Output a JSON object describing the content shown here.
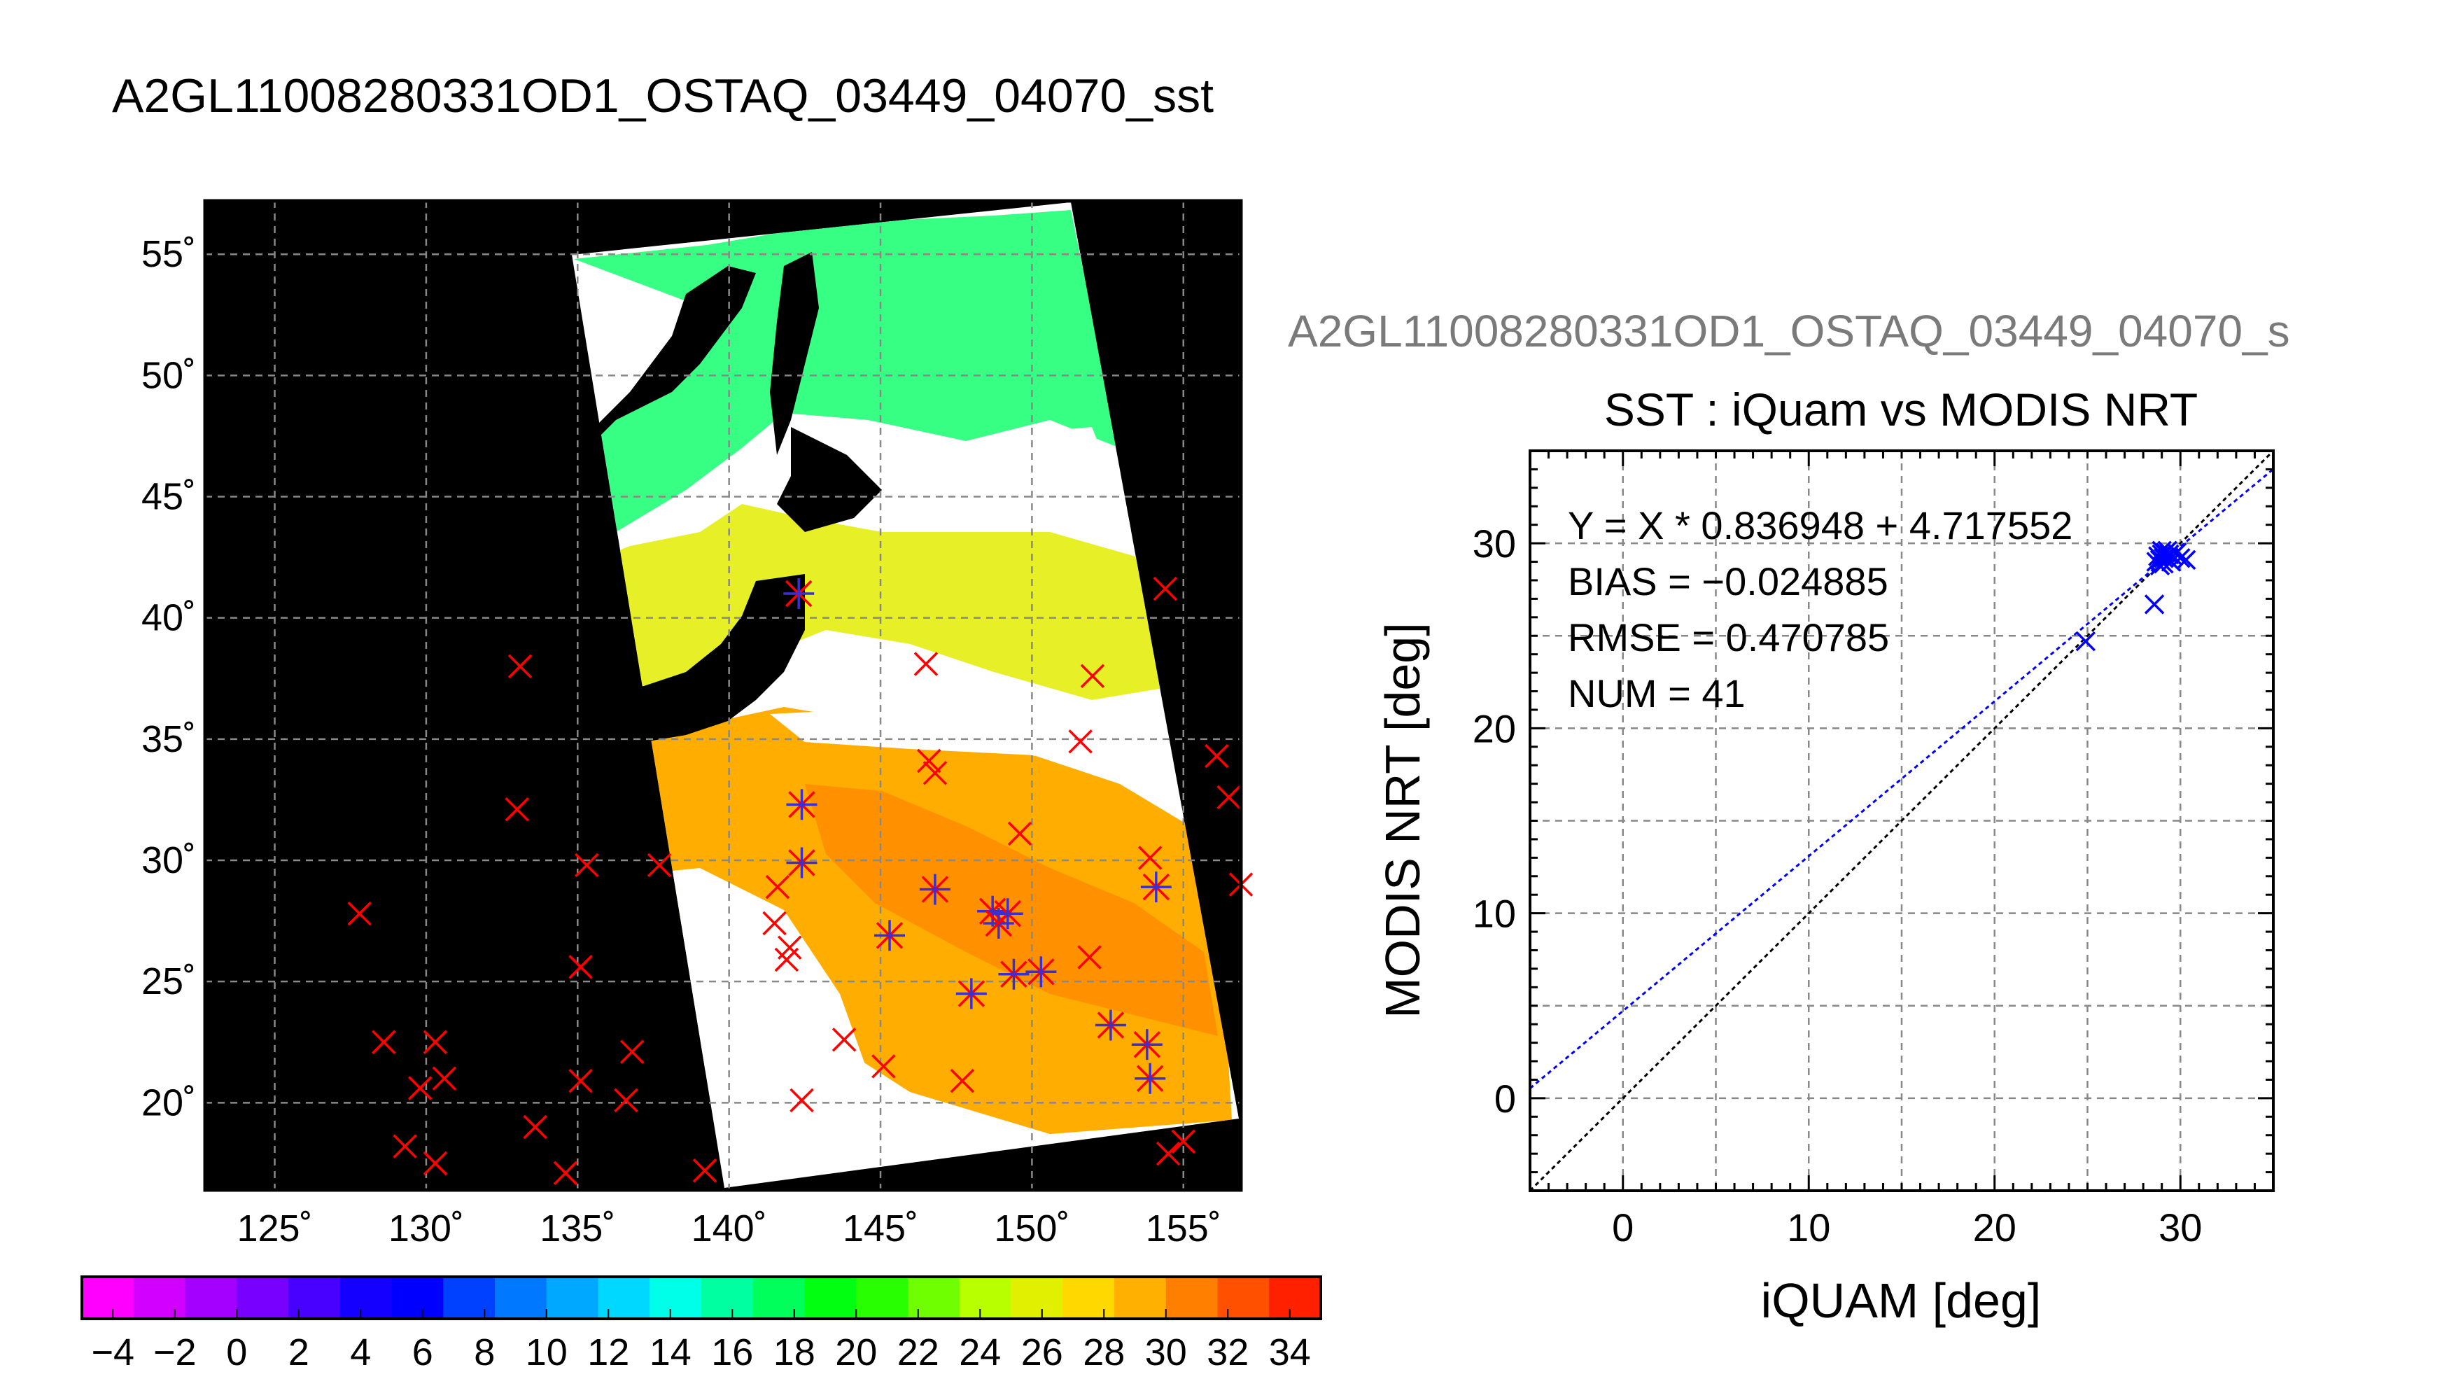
{
  "page_title": "A2GL11008280331OD1_OSTAQ_03449_04070_sst",
  "chart_data": [
    {
      "type": "map",
      "title": "A2GL11008280331OD1_OSTAQ_03449_04070_sst",
      "x_ticks": [
        "125˚",
        "130˚",
        "135˚",
        "140˚",
        "145˚",
        "150˚",
        "155˚"
      ],
      "y_ticks": [
        "20˚",
        "25˚",
        "30˚",
        "35˚",
        "40˚",
        "45˚",
        "50˚",
        "55˚"
      ],
      "xlim": [
        122.7,
        156.9
      ],
      "ylim": [
        16.4,
        57.2
      ],
      "x_tick_values": [
        125,
        130,
        135,
        140,
        145,
        150,
        155
      ],
      "y_tick_values": [
        20,
        25,
        30,
        35,
        40,
        45,
        50,
        55
      ],
      "grid": true,
      "colorbar": {
        "ticks": [
          "-4",
          "-2",
          "0",
          "2",
          "4",
          "6",
          "8",
          "10",
          "12",
          "14",
          "16",
          "18",
          "20",
          "22",
          "24",
          "26",
          "28",
          "30",
          "32",
          "34"
        ],
        "range": [
          -5,
          35
        ],
        "colors": [
          "#ff00ff",
          "#d200ff",
          "#a400ff",
          "#7800ff",
          "#4800ff",
          "#1400ff",
          "#0000ff",
          "#0040ff",
          "#0078ff",
          "#00a8ff",
          "#00d8ff",
          "#00ffe8",
          "#00ffa0",
          "#00ff5a",
          "#00ff10",
          "#28ff00",
          "#70ff00",
          "#b8ff00",
          "#e0f000",
          "#ffd800",
          "#ffb000",
          "#ff8000",
          "#ff5000",
          "#ff2000"
        ]
      },
      "marker_colors": {
        "red": "#ff0000",
        "blue": "#3c2fd0"
      },
      "red_markers": [
        [
          127.8,
          27.8
        ],
        [
          129.3,
          18.2
        ],
        [
          128.6,
          22.5
        ],
        [
          130.3,
          17.5
        ],
        [
          130.6,
          21.0
        ],
        [
          130.3,
          22.5
        ],
        [
          129.8,
          20.6
        ],
        [
          133.1,
          38.0
        ],
        [
          133.0,
          32.1
        ],
        [
          133.6,
          19.0
        ],
        [
          134.6,
          17.1
        ],
        [
          135.1,
          20.9
        ],
        [
          135.1,
          25.6
        ],
        [
          135.3,
          29.8
        ],
        [
          136.6,
          20.1
        ],
        [
          136.8,
          22.1
        ],
        [
          137.7,
          29.8
        ],
        [
          139.2,
          17.2
        ],
        [
          141.5,
          27.4
        ],
        [
          141.6,
          28.9
        ],
        [
          141.9,
          25.9
        ],
        [
          142.0,
          26.4
        ],
        [
          142.4,
          20.1
        ],
        [
          143.8,
          22.6
        ],
        [
          145.1,
          21.5
        ],
        [
          146.5,
          38.1
        ],
        [
          146.6,
          34.1
        ],
        [
          146.8,
          33.6
        ],
        [
          147.7,
          20.9
        ],
        [
          149.6,
          31.1
        ],
        [
          151.6,
          34.9
        ],
        [
          151.9,
          26.0
        ],
        [
          152.0,
          37.6
        ],
        [
          153.9,
          30.1
        ],
        [
          154.4,
          41.2
        ],
        [
          154.5,
          17.9
        ],
        [
          155.0,
          18.4
        ],
        [
          156.1,
          34.3
        ],
        [
          156.5,
          32.6
        ],
        [
          156.9,
          29.0
        ]
      ],
      "star_markers": [
        [
          142.3,
          41.0
        ],
        [
          142.4,
          32.3
        ],
        [
          142.4,
          29.9
        ],
        [
          145.3,
          26.9
        ],
        [
          146.8,
          28.8
        ],
        [
          148.0,
          24.5
        ],
        [
          148.7,
          27.9
        ],
        [
          148.9,
          27.4
        ],
        [
          149.2,
          27.8
        ],
        [
          149.4,
          25.3
        ],
        [
          150.3,
          25.4
        ],
        [
          152.6,
          23.2
        ],
        [
          153.8,
          22.4
        ],
        [
          153.9,
          21.0
        ],
        [
          154.1,
          28.9
        ]
      ]
    },
    {
      "type": "scatter",
      "title": "SST : iQuam vs MODIS NRT",
      "supertitle": "A2GL11008280331OD1_OSTAQ_03449_04070_s",
      "xlabel": "iQUAM [deg]",
      "ylabel": "MODIS NRT [deg]",
      "xlim": [
        -5,
        35
      ],
      "ylim": [
        -5,
        35
      ],
      "x_ticks": [
        "0",
        "10",
        "20",
        "30"
      ],
      "y_ticks": [
        "0",
        "10",
        "20",
        "30"
      ],
      "tick_values": [
        0,
        10,
        20,
        30
      ],
      "grid": true,
      "stats": [
        "Y = X * 0.836948 + 4.717552",
        "BIAS = −0.024885",
        "RMSE = 0.470785",
        "NUM = 41"
      ],
      "fit": {
        "slope": 0.836948,
        "intercept": 4.717552,
        "color": "#0000ff"
      },
      "identity_color": "#000000",
      "point_color": "#0000ff",
      "points": [
        [
          24.9,
          24.7
        ],
        [
          28.6,
          26.7
        ],
        [
          28.7,
          29.0
        ],
        [
          28.8,
          29.3
        ],
        [
          28.9,
          29.1
        ],
        [
          29.0,
          29.4
        ],
        [
          29.1,
          28.9
        ],
        [
          29.2,
          29.5
        ],
        [
          29.3,
          29.2
        ],
        [
          29.4,
          29.4
        ],
        [
          29.5,
          29.0
        ],
        [
          29.6,
          29.3
        ],
        [
          29.8,
          29.5
        ],
        [
          30.0,
          29.2
        ],
        [
          30.3,
          29.1
        ],
        [
          28.9,
          28.8
        ],
        [
          29.0,
          29.6
        ],
        [
          29.3,
          29.6
        ],
        [
          29.1,
          29.2
        ]
      ]
    }
  ]
}
